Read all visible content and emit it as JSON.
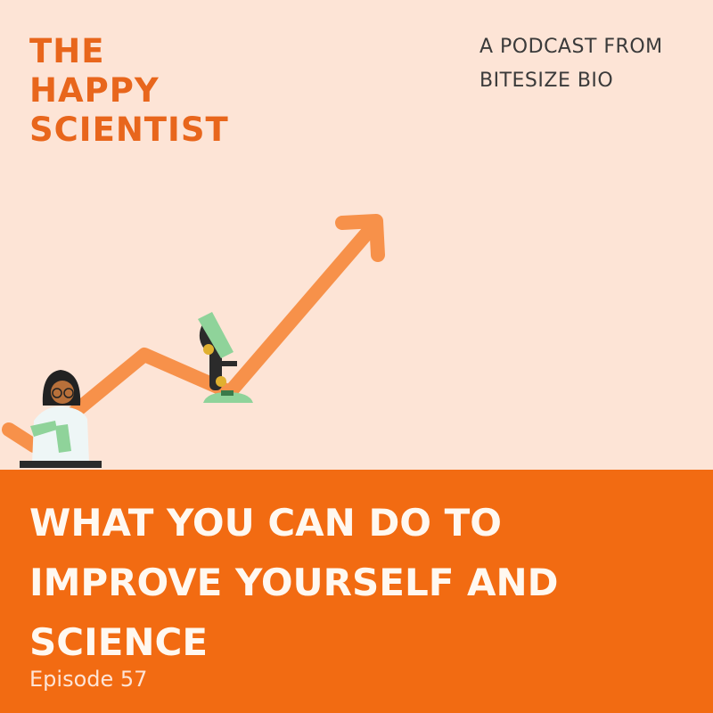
{
  "brand": {
    "lines": [
      "THE",
      "HAPPY",
      "SCIENTIST"
    ]
  },
  "tagline": {
    "lines": [
      "A PODCAST FROM",
      "BITESIZE BIO"
    ]
  },
  "episode": {
    "title_lines": [
      "WHAT YOU CAN DO TO",
      "IMPROVE YOURSELF AND",
      "SCIENCE"
    ],
    "number_label": "Episode 57"
  },
  "colors": {
    "background": "#fde4d6",
    "band": "#f26b12",
    "arrow": "#f7914a",
    "brand_text": "#e8661c"
  },
  "illustration": {
    "icons": [
      "trend-arrow-icon",
      "scientist-illustration",
      "microscope-icon"
    ]
  }
}
